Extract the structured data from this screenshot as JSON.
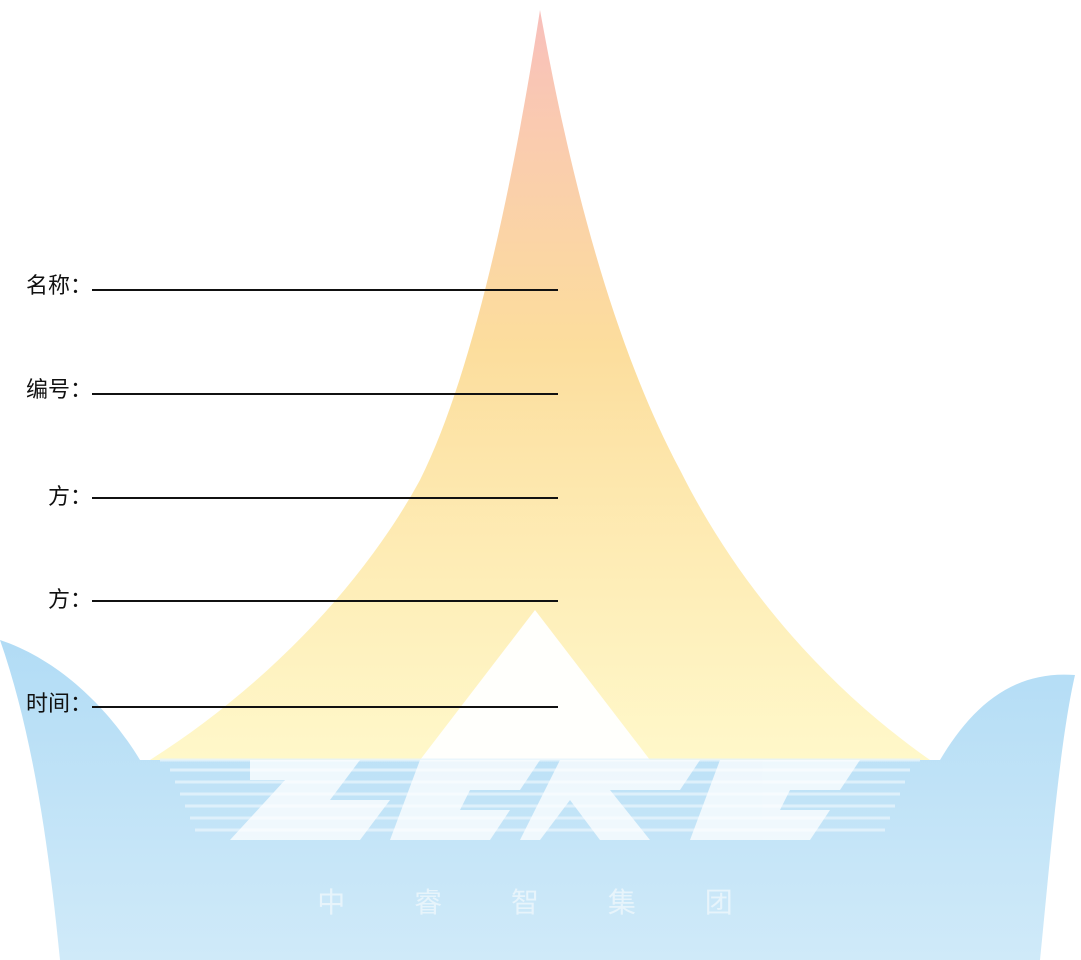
{
  "form": {
    "fields": [
      {
        "label": "名称："
      },
      {
        "label": "编号："
      },
      {
        "label": "方："
      },
      {
        "label": "方："
      },
      {
        "label": "时间："
      }
    ]
  },
  "watermark": {
    "logo": "ZRZJ",
    "company": "中 睿 智 集 团",
    "colors": {
      "sail_top": "#f6b6b0",
      "sail_mid": "#fbd37a",
      "sail_bottom": "#fff2a3",
      "water": "#bfe2f7",
      "water_dark": "#9fd2f1"
    }
  }
}
